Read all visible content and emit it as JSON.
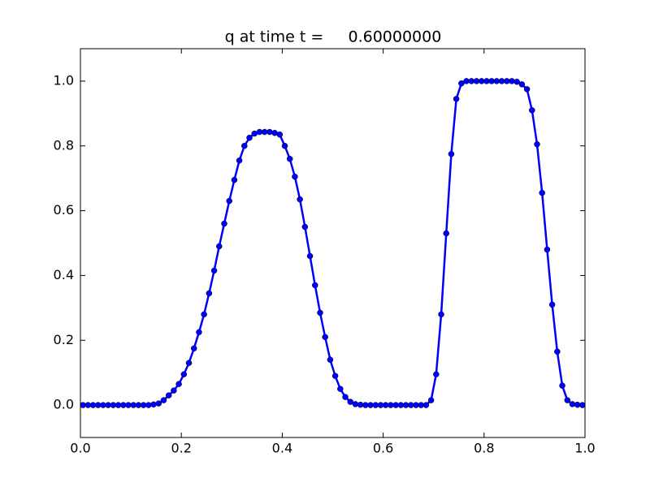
{
  "chart_data": {
    "type": "line",
    "title": "q at time t =     0.60000000",
    "x": [
      0.005,
      0.015,
      0.025,
      0.035,
      0.045,
      0.055,
      0.065,
      0.075,
      0.085,
      0.095,
      0.105,
      0.115,
      0.125,
      0.135,
      0.145,
      0.155,
      0.165,
      0.175,
      0.185,
      0.195,
      0.205,
      0.215,
      0.225,
      0.235,
      0.245,
      0.255,
      0.265,
      0.275,
      0.285,
      0.295,
      0.305,
      0.315,
      0.325,
      0.335,
      0.345,
      0.355,
      0.365,
      0.375,
      0.385,
      0.395,
      0.405,
      0.415,
      0.425,
      0.435,
      0.445,
      0.455,
      0.465,
      0.475,
      0.485,
      0.495,
      0.505,
      0.515,
      0.525,
      0.535,
      0.545,
      0.555,
      0.565,
      0.575,
      0.585,
      0.595,
      0.605,
      0.615,
      0.625,
      0.635,
      0.645,
      0.655,
      0.665,
      0.675,
      0.685,
      0.695,
      0.705,
      0.715,
      0.725,
      0.735,
      0.745,
      0.755,
      0.765,
      0.775,
      0.785,
      0.795,
      0.805,
      0.815,
      0.825,
      0.835,
      0.845,
      0.855,
      0.865,
      0.875,
      0.885,
      0.895,
      0.905,
      0.915,
      0.925,
      0.935,
      0.945,
      0.955,
      0.965,
      0.975,
      0.985,
      0.995
    ],
    "values": [
      0,
      0,
      0,
      0,
      0,
      0,
      0,
      0,
      0,
      0,
      0,
      0,
      0,
      0,
      0.002,
      0.005,
      0.015,
      0.03,
      0.045,
      0.065,
      0.095,
      0.13,
      0.175,
      0.225,
      0.28,
      0.345,
      0.415,
      0.49,
      0.56,
      0.63,
      0.695,
      0.755,
      0.8,
      0.825,
      0.838,
      0.843,
      0.843,
      0.843,
      0.84,
      0.835,
      0.8,
      0.76,
      0.705,
      0.635,
      0.55,
      0.46,
      0.37,
      0.285,
      0.21,
      0.14,
      0.09,
      0.05,
      0.025,
      0.01,
      0.003,
      0.001,
      0,
      0,
      0,
      0,
      0,
      0,
      0,
      0,
      0,
      0,
      0,
      0,
      0,
      0.015,
      0.095,
      0.28,
      0.53,
      0.775,
      0.945,
      0.993,
      1,
      1,
      1,
      1,
      1,
      1,
      1,
      1,
      1,
      1,
      0.998,
      0.99,
      0.975,
      0.91,
      0.805,
      0.655,
      0.48,
      0.31,
      0.165,
      0.06,
      0.015,
      0.003,
      0.001,
      0
    ],
    "color": "#0000ff",
    "xlim": [
      0,
      1
    ],
    "xticks": [
      {
        "value": 0,
        "label": "0.0"
      },
      {
        "value": 0.2,
        "label": "0.2"
      },
      {
        "value": 0.4,
        "label": "0.4"
      },
      {
        "value": 0.6,
        "label": "0.6"
      },
      {
        "value": 0.8,
        "label": "0.8"
      },
      {
        "value": 1,
        "label": "1.0"
      }
    ],
    "ylim": [
      -0.1,
      1.1
    ],
    "yticks": [
      {
        "value": 0,
        "label": "0.0"
      },
      {
        "value": 0.2,
        "label": "0.2"
      },
      {
        "value": 0.4,
        "label": "0.4"
      },
      {
        "value": 0.6,
        "label": "0.6"
      },
      {
        "value": 0.8,
        "label": "0.8"
      },
      {
        "value": 1,
        "label": "1.0"
      }
    ]
  }
}
